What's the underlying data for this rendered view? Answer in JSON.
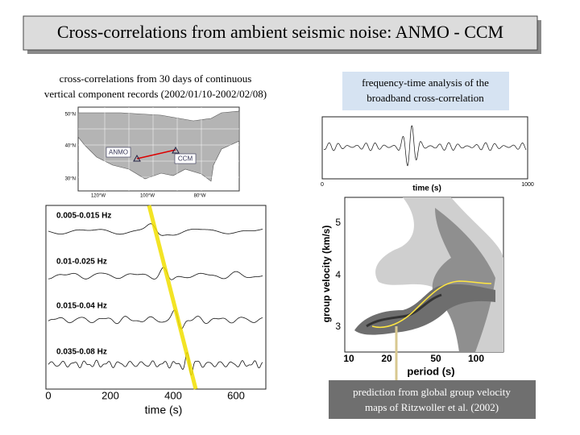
{
  "title": "Cross-correlations from ambient seismic noise: ANMO - CCM",
  "left_caption": [
    "cross-correlations from 30 days of continuous",
    "vertical component records (2002/01/10-2002/02/08)"
  ],
  "right_caption": [
    "frequency-time analysis of the",
    "broadband cross-correlation"
  ],
  "bottom_caption": [
    "prediction from global group velocity",
    "maps of Ritzwoller et al. (2002)"
  ],
  "map": {
    "stations": [
      "ANMO",
      "CCM"
    ],
    "lat_labels": [
      "50°N",
      "40°N",
      "30°N"
    ],
    "lon_labels": [
      "120°W",
      "100°W",
      "80°W"
    ]
  },
  "waveforms": {
    "bands": [
      "0.005-0.015 Hz",
      "0.01-0.025 Hz",
      "0.015-0.04 Hz",
      "0.035-0.08 Hz"
    ],
    "x_ticks": [
      "0",
      "200",
      "400",
      "600"
    ],
    "x_label": "time (s)"
  },
  "seismogram": {
    "x_ticks": [
      "0",
      "1000"
    ],
    "x_label": "time (s)"
  },
  "ftan": {
    "y_ticks": [
      "5",
      "4",
      "3"
    ],
    "y_label": "group velocity (km/s)",
    "x_ticks": [
      "10",
      "20",
      "50",
      "100"
    ],
    "x_label": "period (s)"
  }
}
